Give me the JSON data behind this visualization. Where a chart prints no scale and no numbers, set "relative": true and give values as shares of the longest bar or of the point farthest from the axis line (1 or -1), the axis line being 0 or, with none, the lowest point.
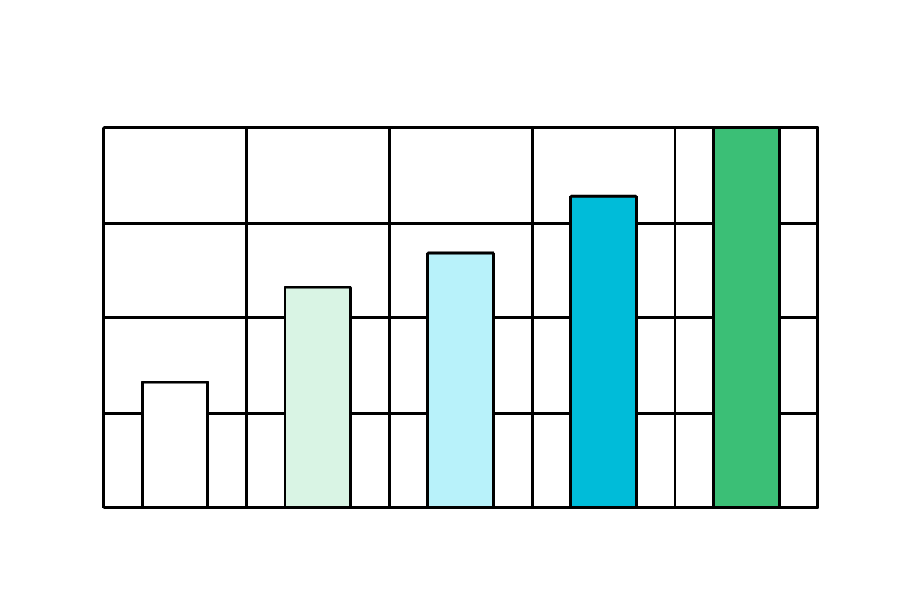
{
  "chart_data": {
    "type": "bar",
    "relative": true,
    "categories": [
      null,
      null,
      null,
      null,
      null
    ],
    "values": [
      0.33,
      0.58,
      0.67,
      0.82,
      1.0
    ],
    "colors": [
      "#ffffff",
      "#d9f4e4",
      "#b8f2fa",
      "#00bcd9",
      "#3bbf76"
    ],
    "grid": true
  }
}
